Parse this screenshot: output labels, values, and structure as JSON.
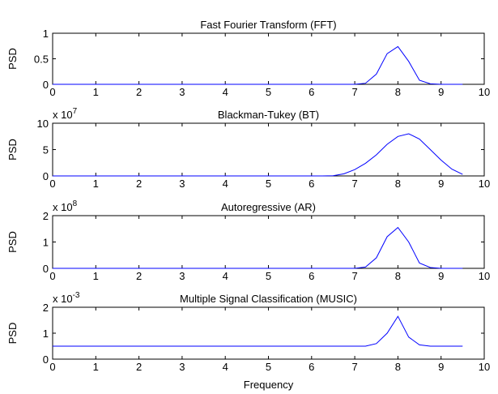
{
  "chart_data": [
    {
      "type": "line",
      "title": "Fast Fourier Transform (FFT)",
      "ylabel": "PSD",
      "xlabel": "",
      "exponent_label": "",
      "xlim": [
        0,
        10
      ],
      "ylim": [
        0,
        1
      ],
      "xticks": [
        "0",
        "1",
        "2",
        "3",
        "4",
        "5",
        "6",
        "7",
        "8",
        "9",
        "10"
      ],
      "yticks": [
        "0",
        "0.5",
        "1"
      ],
      "line_color": "#0000ff",
      "x": [
        0,
        0.25,
        0.5,
        0.75,
        1,
        1.25,
        1.5,
        1.75,
        2,
        2.25,
        2.5,
        2.75,
        3,
        3.25,
        3.5,
        3.75,
        4,
        4.25,
        4.5,
        4.75,
        5,
        5.25,
        5.5,
        5.75,
        6,
        6.25,
        6.5,
        6.75,
        7,
        7.25,
        7.5,
        7.75,
        8,
        8.25,
        8.5,
        8.75,
        9,
        9.25,
        9.5
      ],
      "y": [
        0,
        0,
        0,
        0,
        0,
        0,
        0,
        0,
        0,
        0,
        0,
        0,
        0,
        0,
        0,
        0,
        0,
        0,
        0,
        0,
        0,
        0,
        0,
        0,
        0,
        0,
        0,
        0,
        0,
        0.02,
        0.2,
        0.6,
        0.74,
        0.45,
        0.08,
        0.01,
        0,
        0,
        0
      ]
    },
    {
      "type": "line",
      "title": "Blackman-Tukey (BT)",
      "ylabel": "PSD",
      "xlabel": "",
      "exponent_label": "x 10",
      "exponent_power": "7",
      "xlim": [
        0,
        10
      ],
      "ylim": [
        0,
        10
      ],
      "xticks": [
        "0",
        "1",
        "2",
        "3",
        "4",
        "5",
        "6",
        "7",
        "8",
        "9",
        "10"
      ],
      "yticks": [
        "0",
        "5",
        "10"
      ],
      "line_color": "#0000ff",
      "x": [
        0,
        0.25,
        0.5,
        0.75,
        1,
        1.25,
        1.5,
        1.75,
        2,
        2.25,
        2.5,
        2.75,
        3,
        3.25,
        3.5,
        3.75,
        4,
        4.25,
        4.5,
        4.75,
        5,
        5.25,
        5.5,
        5.75,
        6,
        6.25,
        6.5,
        6.75,
        7,
        7.25,
        7.5,
        7.75,
        8,
        8.25,
        8.5,
        8.75,
        9,
        9.25,
        9.5
      ],
      "y": [
        0,
        0,
        0,
        0,
        0,
        0,
        0,
        0,
        0,
        0,
        0,
        0,
        0,
        0,
        0,
        0,
        0,
        0,
        0,
        0,
        0,
        0,
        0,
        0,
        0,
        0,
        0.05,
        0.4,
        1.2,
        2.4,
        4,
        6,
        7.5,
        8,
        7,
        5,
        3,
        1.3,
        0.3
      ]
    },
    {
      "type": "line",
      "title": "Autoregressive (AR)",
      "ylabel": "PSD",
      "xlabel": "",
      "exponent_label": "x 10",
      "exponent_power": "8",
      "xlim": [
        0,
        10
      ],
      "ylim": [
        0,
        2
      ],
      "xticks": [
        "0",
        "1",
        "2",
        "3",
        "4",
        "5",
        "6",
        "7",
        "8",
        "9",
        "10"
      ],
      "yticks": [
        "0",
        "1",
        "2"
      ],
      "line_color": "#0000ff",
      "x": [
        0,
        0.25,
        0.5,
        0.75,
        1,
        1.25,
        1.5,
        1.75,
        2,
        2.25,
        2.5,
        2.75,
        3,
        3.25,
        3.5,
        3.75,
        4,
        4.25,
        4.5,
        4.75,
        5,
        5.25,
        5.5,
        5.75,
        6,
        6.25,
        6.5,
        6.75,
        7,
        7.25,
        7.5,
        7.75,
        8,
        8.25,
        8.5,
        8.75,
        9,
        9.25,
        9.5
      ],
      "y": [
        0,
        0,
        0,
        0,
        0,
        0,
        0,
        0,
        0,
        0,
        0,
        0,
        0,
        0,
        0,
        0,
        0,
        0,
        0,
        0,
        0,
        0,
        0,
        0,
        0,
        0,
        0,
        0,
        0,
        0.05,
        0.4,
        1.2,
        1.55,
        1,
        0.2,
        0.03,
        0,
        0,
        0
      ]
    },
    {
      "type": "line",
      "title": "Multiple Signal Classification (MUSIC)",
      "ylabel": "PSD",
      "xlabel": "Frequency",
      "exponent_label": "x 10",
      "exponent_power": "-3",
      "xlim": [
        0,
        10
      ],
      "ylim": [
        0,
        2
      ],
      "xticks": [
        "0",
        "1",
        "2",
        "3",
        "4",
        "5",
        "6",
        "7",
        "8",
        "9",
        "10"
      ],
      "yticks": [
        "0",
        "1",
        "2"
      ],
      "line_color": "#0000ff",
      "x": [
        0,
        0.25,
        0.5,
        0.75,
        1,
        1.25,
        1.5,
        1.75,
        2,
        2.25,
        2.5,
        2.75,
        3,
        3.25,
        3.5,
        3.75,
        4,
        4.25,
        4.5,
        4.75,
        5,
        5.25,
        5.5,
        5.75,
        6,
        6.25,
        6.5,
        6.75,
        7,
        7.25,
        7.5,
        7.75,
        8,
        8.25,
        8.5,
        8.75,
        9,
        9.25,
        9.5
      ],
      "y": [
        0.5,
        0.5,
        0.5,
        0.5,
        0.5,
        0.5,
        0.5,
        0.5,
        0.5,
        0.5,
        0.5,
        0.5,
        0.5,
        0.5,
        0.5,
        0.5,
        0.5,
        0.5,
        0.5,
        0.5,
        0.5,
        0.5,
        0.5,
        0.5,
        0.5,
        0.5,
        0.5,
        0.5,
        0.5,
        0.5,
        0.6,
        1.0,
        1.65,
        0.85,
        0.55,
        0.5,
        0.5,
        0.5,
        0.5
      ]
    }
  ]
}
